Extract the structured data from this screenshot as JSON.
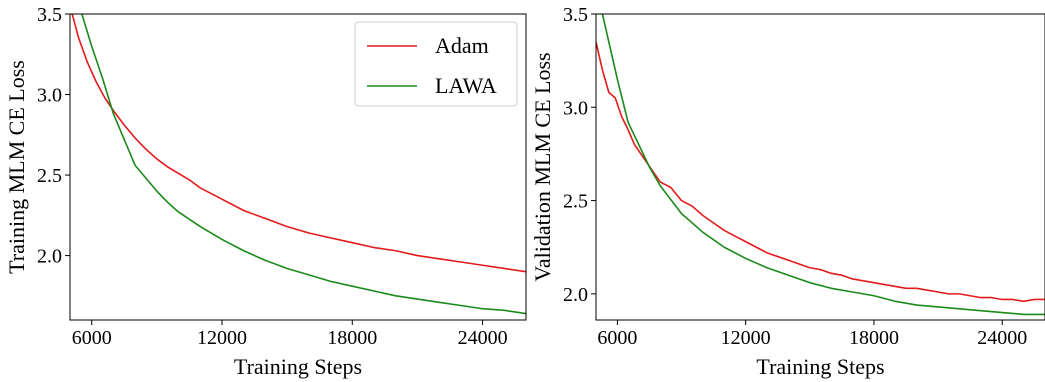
{
  "chart_data": [
    {
      "type": "line",
      "title": "",
      "xlabel": "Training Steps",
      "ylabel": "Training MLM CE Loss",
      "xlim": [
        5000,
        26000
      ],
      "ylim": [
        1.6,
        3.5
      ],
      "xticks": [
        6000,
        12000,
        18000,
        24000
      ],
      "yticks": [
        2.0,
        2.5,
        3.0,
        3.5
      ],
      "xtick_labels": [
        "6000",
        "12000",
        "18000",
        "24000"
      ],
      "ytick_labels": [
        "2.0",
        "2.5",
        "3.0",
        "3.5"
      ],
      "grid": false,
      "legend": "top-right",
      "series": [
        {
          "name": "Adam",
          "color": "#e31a1c",
          "x": [
            5000,
            5400,
            5800,
            6200,
            6600,
            7000,
            7500,
            8000,
            8500,
            9000,
            9500,
            10000,
            10500,
            11000,
            12000,
            13000,
            14000,
            15000,
            16000,
            17000,
            18000,
            19000,
            20000,
            21000,
            22000,
            23000,
            24000,
            25000,
            26000
          ],
          "y": [
            3.55,
            3.35,
            3.2,
            3.08,
            2.98,
            2.9,
            2.81,
            2.73,
            2.66,
            2.6,
            2.55,
            2.51,
            2.47,
            2.42,
            2.35,
            2.28,
            2.23,
            2.18,
            2.14,
            2.11,
            2.08,
            2.05,
            2.03,
            2.0,
            1.98,
            1.96,
            1.94,
            1.92,
            1.9
          ]
        },
        {
          "name": "LAWA",
          "color": "#1a8a1a",
          "x": [
            5500,
            6000,
            6500,
            7000,
            8000,
            9000,
            9500,
            10000,
            11000,
            12000,
            13000,
            14000,
            15000,
            16000,
            17000,
            18000,
            19000,
            20000,
            21000,
            22000,
            23000,
            24000,
            25000,
            26000
          ],
          "y": [
            3.52,
            3.3,
            3.1,
            2.88,
            2.56,
            2.4,
            2.33,
            2.27,
            2.18,
            2.1,
            2.03,
            1.97,
            1.92,
            1.88,
            1.84,
            1.81,
            1.78,
            1.75,
            1.73,
            1.71,
            1.69,
            1.67,
            1.66,
            1.64
          ]
        }
      ]
    },
    {
      "type": "line",
      "title": "",
      "xlabel": "Training Steps",
      "ylabel": "Validation MLM CE Loss",
      "xlim": [
        5000,
        26000
      ],
      "ylim": [
        1.86,
        3.5
      ],
      "xticks": [
        6000,
        12000,
        18000,
        24000
      ],
      "yticks": [
        2.0,
        2.5,
        3.0,
        3.5
      ],
      "xtick_labels": [
        "6000",
        "12000",
        "18000",
        "24000"
      ],
      "ytick_labels": [
        "2.0",
        "2.5",
        "3.0",
        "3.5"
      ],
      "grid": false,
      "legend": "none",
      "series": [
        {
          "name": "Adam",
          "color": "#e31a1c",
          "x": [
            5000,
            5300,
            5600,
            5900,
            6200,
            6500,
            6800,
            7100,
            7400,
            7700,
            8000,
            8500,
            9000,
            9500,
            10000,
            10500,
            11000,
            11500,
            12000,
            12500,
            13000,
            13500,
            14000,
            14500,
            15000,
            15500,
            16000,
            16500,
            17000,
            17500,
            18000,
            18500,
            19000,
            19500,
            20000,
            20500,
            21000,
            21500,
            22000,
            22500,
            23000,
            23500,
            24000,
            24500,
            25000,
            25500,
            26000
          ],
          "y": [
            3.35,
            3.2,
            3.08,
            3.05,
            2.95,
            2.88,
            2.8,
            2.75,
            2.7,
            2.65,
            2.6,
            2.57,
            2.5,
            2.47,
            2.42,
            2.38,
            2.34,
            2.31,
            2.28,
            2.25,
            2.22,
            2.2,
            2.18,
            2.16,
            2.14,
            2.13,
            2.11,
            2.1,
            2.08,
            2.07,
            2.06,
            2.05,
            2.04,
            2.03,
            2.03,
            2.02,
            2.01,
            2.0,
            2.0,
            1.99,
            1.98,
            1.98,
            1.97,
            1.97,
            1.96,
            1.97,
            1.97
          ]
        },
        {
          "name": "LAWA",
          "color": "#1a8a1a",
          "x": [
            5200,
            5600,
            6000,
            6500,
            7000,
            7500,
            8000,
            9000,
            10000,
            11000,
            12000,
            13000,
            14000,
            15000,
            16000,
            17000,
            18000,
            19000,
            20000,
            21000,
            22000,
            23000,
            24000,
            25000,
            26000
          ],
          "y": [
            3.55,
            3.35,
            3.15,
            2.92,
            2.8,
            2.68,
            2.58,
            2.43,
            2.33,
            2.25,
            2.19,
            2.14,
            2.1,
            2.06,
            2.03,
            2.01,
            1.99,
            1.96,
            1.94,
            1.93,
            1.92,
            1.91,
            1.9,
            1.89,
            1.89
          ]
        }
      ]
    }
  ]
}
